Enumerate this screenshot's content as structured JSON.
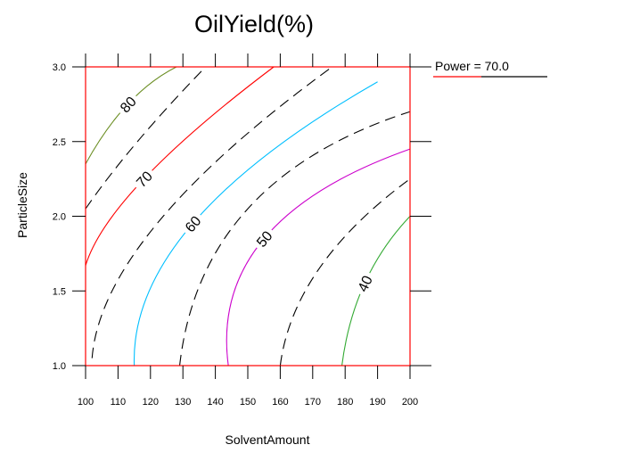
{
  "chart_data": {
    "type": "contour",
    "title": "OilYield(%)",
    "xlabel": "SolventAmount",
    "ylabel": "ParticleSize",
    "xlim": [
      100,
      200
    ],
    "ylim": [
      1.0,
      3.0
    ],
    "x_ticks": [
      "100",
      "110",
      "120",
      "130",
      "140",
      "150",
      "160",
      "170",
      "180",
      "190",
      "200"
    ],
    "y_ticks": [
      "1.0",
      "1.5",
      "2.0",
      "2.5",
      "3.0"
    ],
    "hold_value_label": "Power = 70.0",
    "grid": false,
    "levels": [
      {
        "level": 80,
        "label": "80",
        "color": "#6b8e23",
        "style": "solid",
        "points": [
          [
            100,
            2.35
          ],
          [
            113,
            2.75
          ],
          [
            128,
            3.0
          ]
        ]
      },
      {
        "level": 75,
        "label": "",
        "color": "#000000",
        "style": "dashed",
        "points": [
          [
            100,
            2.05
          ],
          [
            116,
            2.5
          ],
          [
            137,
            3.0
          ]
        ]
      },
      {
        "level": 70,
        "label": "70",
        "color": "#ff0000",
        "style": "solid",
        "points": [
          [
            100,
            1.67
          ],
          [
            118,
            2.25
          ],
          [
            158,
            3.0
          ]
        ]
      },
      {
        "level": 65,
        "label": "",
        "color": "#000000",
        "style": "dashed",
        "points": [
          [
            102,
            1.05
          ],
          [
            122,
            1.95
          ],
          [
            176,
            3.0
          ]
        ]
      },
      {
        "level": 60,
        "label": "60",
        "color": "#00bfff",
        "style": "solid",
        "points": [
          [
            115,
            1.0
          ],
          [
            133,
            1.95
          ],
          [
            190,
            2.9
          ]
        ]
      },
      {
        "level": 55,
        "label": "",
        "color": "#000000",
        "style": "dashed",
        "points": [
          [
            129,
            1.0
          ],
          [
            150,
            2.05
          ],
          [
            200,
            2.7
          ]
        ]
      },
      {
        "level": 50,
        "label": "50",
        "color": "#cc00cc",
        "style": "solid",
        "points": [
          [
            144,
            1.0
          ],
          [
            155,
            1.85
          ],
          [
            200,
            2.45
          ]
        ]
      },
      {
        "level": 45,
        "label": "",
        "color": "#000000",
        "style": "dashed",
        "points": [
          [
            160,
            1.0
          ],
          [
            172,
            1.65
          ],
          [
            200,
            2.25
          ]
        ]
      },
      {
        "level": 40,
        "label": "40",
        "color": "#33aa33",
        "style": "solid",
        "points": [
          [
            179,
            1.0
          ],
          [
            186,
            1.55
          ],
          [
            200,
            2.0
          ]
        ]
      }
    ]
  }
}
